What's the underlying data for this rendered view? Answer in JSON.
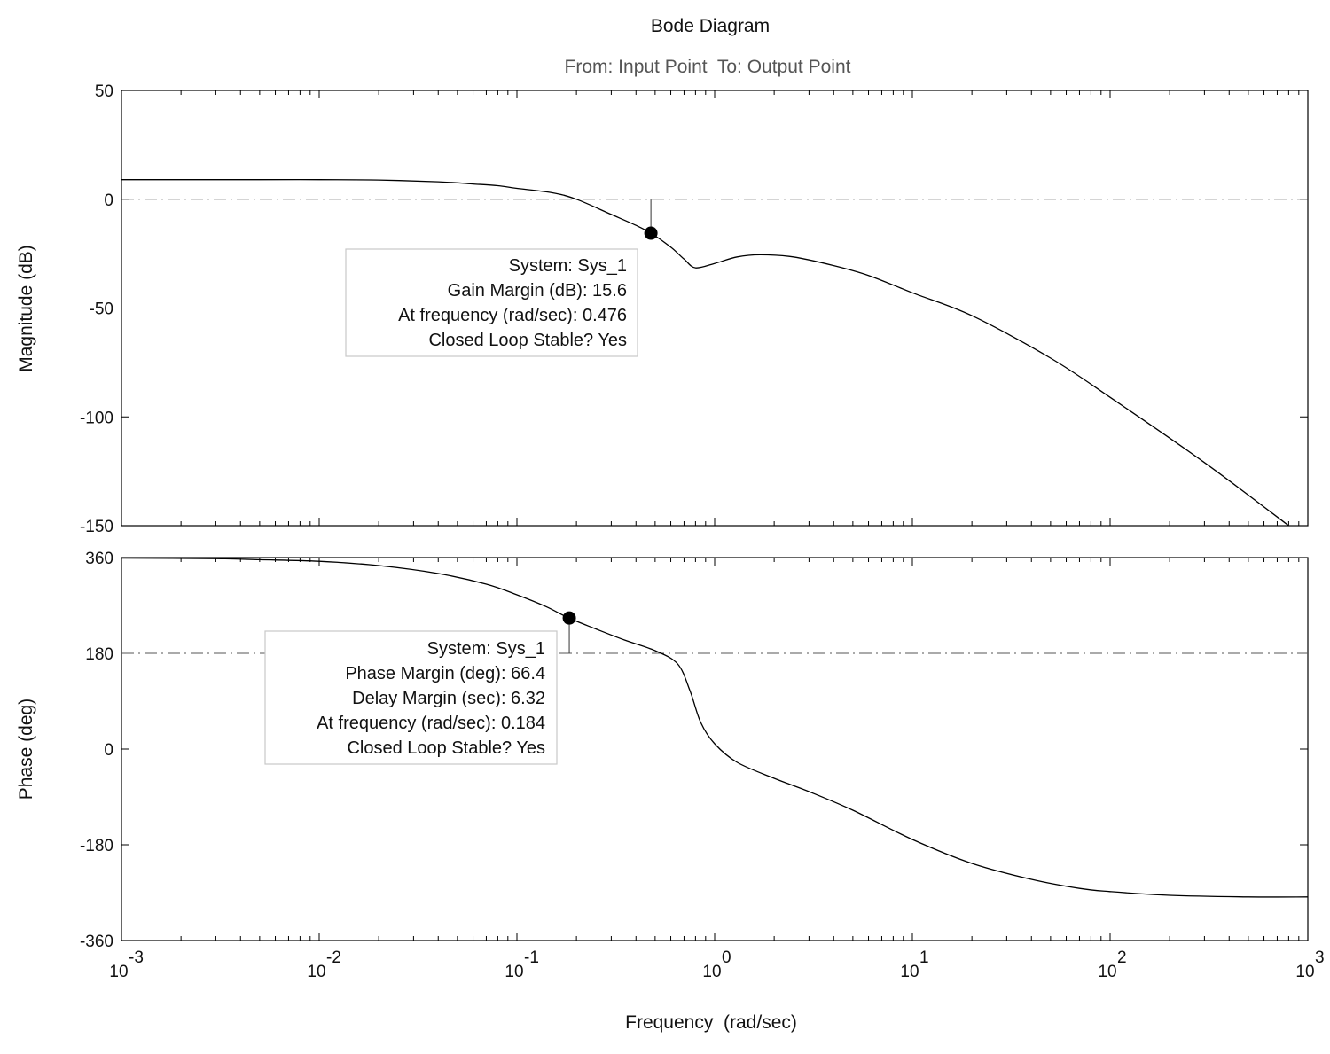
{
  "chart_data": {
    "type": "line",
    "title": "Bode Diagram",
    "subtitle": "From: Input Point  To: Output Point",
    "xlabel": "Frequency  (rad/sec)",
    "x_scale": "log",
    "xlim": [
      0.001,
      1000
    ],
    "x_ticks": [
      {
        "value": 0.001,
        "base": "10",
        "exp": "-3"
      },
      {
        "value": 0.01,
        "base": "10",
        "exp": "-2"
      },
      {
        "value": 0.1,
        "base": "10",
        "exp": "-1"
      },
      {
        "value": 1,
        "base": "10",
        "exp": "0"
      },
      {
        "value": 10,
        "base": "10",
        "exp": "1"
      },
      {
        "value": 100,
        "base": "10",
        "exp": "2"
      },
      {
        "value": 1000,
        "base": "10",
        "exp": "3"
      }
    ],
    "panels": [
      {
        "ylabel": "Magnitude (dB)",
        "ylim": [
          -150,
          50
        ],
        "y_ticks": [
          50,
          0,
          -50,
          -100,
          -150
        ],
        "reference_line": 0,
        "curve": {
          "x": [
            0.001,
            0.002,
            0.005,
            0.01,
            0.02,
            0.04,
            0.06,
            0.08,
            0.1,
            0.15,
            0.2,
            0.3,
            0.4,
            0.476,
            0.6,
            0.7,
            0.8,
            1.0,
            1.3,
            1.7,
            2.5,
            4,
            6,
            10,
            20,
            50,
            100,
            300,
            800
          ],
          "y": [
            9,
            9,
            9,
            9,
            8.8,
            8,
            7,
            6.2,
            5,
            3,
            0,
            -7,
            -12,
            -15.6,
            -22,
            -27.5,
            -31.5,
            -29.5,
            -26.5,
            -25.5,
            -26.5,
            -30.5,
            -35,
            -43,
            -53.5,
            -73,
            -91,
            -121,
            -150
          ]
        },
        "marker": {
          "x": 0.476,
          "y": -15.6
        },
        "annotation": [
          "System: Sys_1",
          "Gain Margin (dB): 15.6",
          "At frequency (rad/sec): 0.476",
          "Closed Loop Stable? Yes"
        ]
      },
      {
        "ylabel": "Phase (deg)",
        "ylim": [
          -360,
          360
        ],
        "y_ticks": [
          360,
          180,
          0,
          -180,
          -360
        ],
        "reference_line": 180,
        "curve": {
          "x": [
            0.001,
            0.003,
            0.005,
            0.01,
            0.02,
            0.04,
            0.07,
            0.1,
            0.14,
            0.184,
            0.25,
            0.35,
            0.5,
            0.65,
            0.75,
            0.85,
            1.0,
            1.3,
            2,
            3,
            5,
            10,
            20,
            40,
            70,
            100,
            200,
            500,
            1000
          ],
          "y": [
            359,
            358,
            356,
            353,
            345,
            330,
            310,
            290,
            268,
            246,
            226,
            205,
            185,
            160,
            110,
            50,
            10,
            -25,
            -55,
            -80,
            -115,
            -170,
            -215,
            -245,
            -262,
            -268,
            -275,
            -278,
            -278
          ]
        },
        "marker": {
          "x": 0.184,
          "y": 246.4
        },
        "annotation": [
          "System: Sys_1",
          "Phase Margin (deg): 66.4",
          "Delay Margin (sec): 6.32",
          "At frequency (rad/sec): 0.184",
          "Closed Loop Stable? Yes"
        ]
      }
    ]
  }
}
